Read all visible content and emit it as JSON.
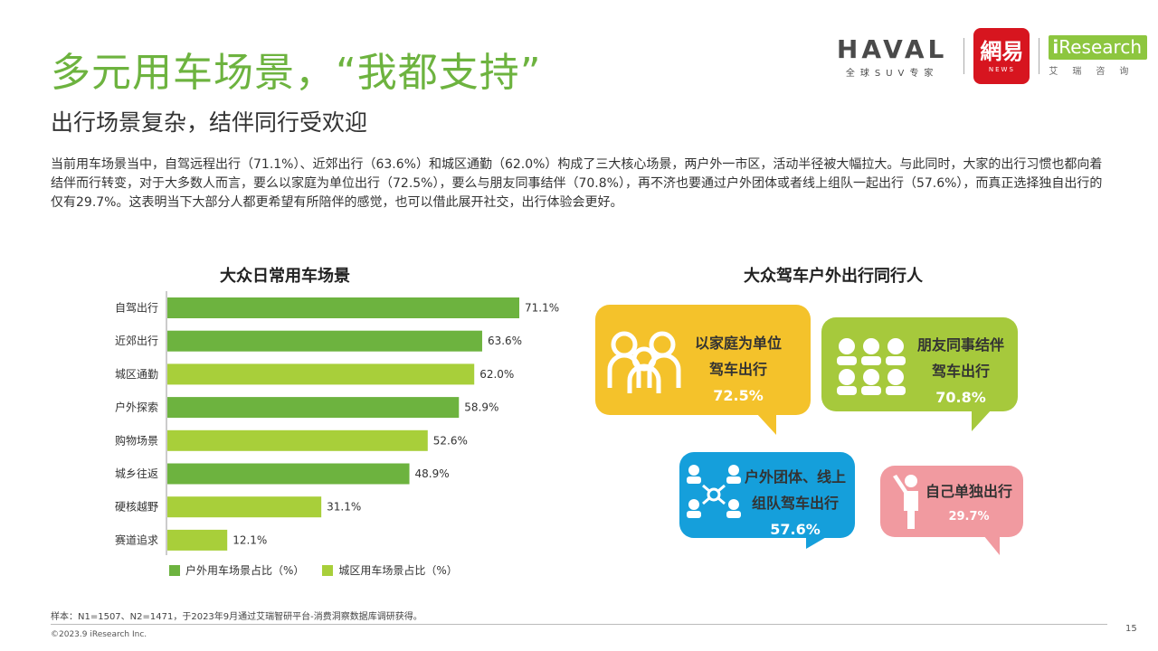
{
  "header": {
    "title": "多元用车场景，“我都支持”",
    "subtitle": "出行场景复杂，结伴同行受欢迎",
    "description": "当前用车场景当中，自驾远程出行（71.1%）、近郊出行（63.6%）和城区通勤（62.0%）构成了三大核心场景，两户外一市区，活动半径被大幅拉大。与此同时，大家的出行习惯也都向着结伴而行转变，对于大多数人而言，要么以家庭为单位出行（72.5%），要么与朋友同事结伴（70.8%），再不济也要通过户外团体或者线上组队一起出行（57.6%），而真正选择独自出行的仅有29.7%。这表明当下大部分人都更希望有所陪伴的感觉，也可以借此展开社交，出行体验会更好。"
  },
  "logos": {
    "haval_word": "HAVAL",
    "haval_tag": "全球SUV专家",
    "netease_cn": "網易",
    "netease_en": "NEWS",
    "iresearch_i": "i",
    "iresearch_rest": "Research",
    "iresearch_cn": "艾瑞咨询"
  },
  "chart_data": {
    "type": "bar",
    "orientation": "horizontal",
    "title": "大众日常用车场景",
    "categories": [
      "自驾出行",
      "近郊出行",
      "城区通勤",
      "户外探索",
      "购物场景",
      "城乡往返",
      "硬核越野",
      "赛道追求"
    ],
    "values": [
      71.1,
      63.6,
      62.0,
      58.9,
      52.6,
      48.9,
      31.1,
      12.1
    ],
    "value_labels": [
      "71.1%",
      "63.6%",
      "62.0%",
      "58.9%",
      "52.6%",
      "48.9%",
      "31.1%",
      "12.1%"
    ],
    "category_group": [
      "outdoor",
      "outdoor",
      "urban",
      "outdoor",
      "urban",
      "outdoor",
      "urban",
      "urban"
    ],
    "series": [
      {
        "key": "outdoor",
        "name": "户外用车场景占比（%）",
        "color": "#6db33f"
      },
      {
        "key": "urban",
        "name": "城区用车场景占比（%）",
        "color": "#a8cf3a"
      }
    ],
    "xlim": [
      0,
      100
    ],
    "legend": "bottom"
  },
  "companions": {
    "title": "大众驾车户外出行同行人",
    "items": [
      {
        "line1": "以家庭为单位",
        "line2": "驾车出行",
        "pct": "72.5%",
        "color": "#f4c22b",
        "icon": "family-icon"
      },
      {
        "line1": "朋友同事结伴",
        "line2": "驾车出行",
        "pct": "70.8%",
        "color": "#a6c93c",
        "icon": "friends-icon"
      },
      {
        "line1": "户外团体、线上",
        "line2": "组队驾车出行",
        "pct": "57.6%",
        "color": "#159fdb",
        "icon": "network-icon"
      },
      {
        "line1": "自己单独出行",
        "line2": "",
        "pct": "29.7%",
        "color": "#f19aa0",
        "icon": "solo-person-icon"
      }
    ]
  },
  "footer": {
    "sample_note": "样本：N1=1507、N2=1471，于2023年9月通过艾瑞智研平台-消费洞察数据库调研获得。",
    "copyright": "©2023.9 iResearch Inc.",
    "page_number": "15"
  }
}
